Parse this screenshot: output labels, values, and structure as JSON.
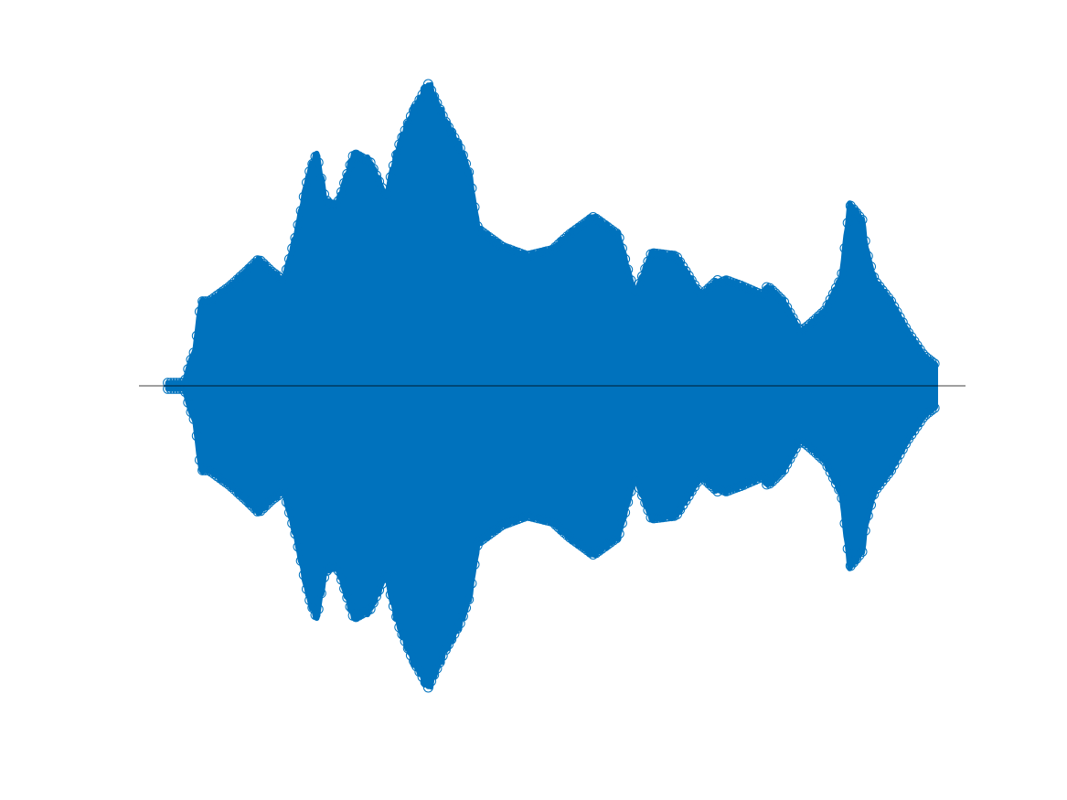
{
  "chart_data": {
    "type": "scatter",
    "title": "",
    "xlabel": "",
    "ylabel": "",
    "axes_visible": false,
    "grid": false,
    "legend": "none",
    "marker": "open-circle",
    "baseline_y": 0,
    "xlim": [
      0,
      1
    ],
    "ylim": [
      -1,
      1
    ],
    "data_extent_x": [
      0.035,
      0.964
    ],
    "series": [
      {
        "color": "#0072BD",
        "envelope": {
          "x": [
            0.035,
            0.055,
            0.062,
            0.068,
            0.075,
            0.085,
            0.095,
            0.11,
            0.13,
            0.145,
            0.16,
            0.175,
            0.19,
            0.205,
            0.215,
            0.225,
            0.232,
            0.24,
            0.26,
            0.28,
            0.3,
            0.305,
            0.315,
            0.33,
            0.35,
            0.37,
            0.39,
            0.4,
            0.41,
            0.42,
            0.43,
            0.44,
            0.45,
            0.47,
            0.5,
            0.52,
            0.55,
            0.58,
            0.6,
            0.62,
            0.65,
            0.68,
            0.7,
            0.703,
            0.71,
            0.73,
            0.755,
            0.76,
            0.765,
            0.78,
            0.8,
            0.81,
            0.83,
            0.85,
            0.86,
            0.875,
            0.88,
            0.89,
            0.91,
            0.93,
            0.95,
            0.964
          ],
          "upper": [
            0.01,
            0.01,
            0.08,
            0.12,
            0.28,
            0.28,
            0.3,
            0.33,
            0.38,
            0.42,
            0.38,
            0.35,
            0.5,
            0.7,
            0.77,
            0.62,
            0.6,
            0.6,
            0.77,
            0.74,
            0.62,
            0.7,
            0.8,
            0.9,
            1.0,
            0.88,
            0.78,
            0.7,
            0.52,
            0.5,
            0.48,
            0.46,
            0.45,
            0.43,
            0.45,
            0.5,
            0.56,
            0.5,
            0.3,
            0.44,
            0.43,
            0.3,
            0.35,
            0.34,
            0.35,
            0.33,
            0.3,
            0.33,
            0.32,
            0.28,
            0.18,
            0.2,
            0.25,
            0.36,
            0.6,
            0.55,
            0.45,
            0.35,
            0.28,
            0.18,
            0.1,
            0.07
          ],
          "lower": [
            -0.01,
            -0.01,
            -0.08,
            -0.12,
            -0.28,
            -0.28,
            -0.3,
            -0.33,
            -0.38,
            -0.42,
            -0.38,
            -0.35,
            -0.5,
            -0.7,
            -0.77,
            -0.62,
            -0.6,
            -0.6,
            -0.77,
            -0.74,
            -0.62,
            -0.7,
            -0.8,
            -0.9,
            -1.0,
            -0.88,
            -0.78,
            -0.7,
            -0.52,
            -0.5,
            -0.48,
            -0.46,
            -0.45,
            -0.43,
            -0.45,
            -0.5,
            -0.56,
            -0.5,
            -0.3,
            -0.44,
            -0.43,
            -0.3,
            -0.35,
            -0.34,
            -0.35,
            -0.33,
            -0.3,
            -0.33,
            -0.32,
            -0.28,
            -0.18,
            -0.2,
            -0.25,
            -0.36,
            -0.6,
            -0.55,
            -0.45,
            -0.35,
            -0.28,
            -0.18,
            -0.1,
            -0.07
          ]
        }
      }
    ]
  }
}
